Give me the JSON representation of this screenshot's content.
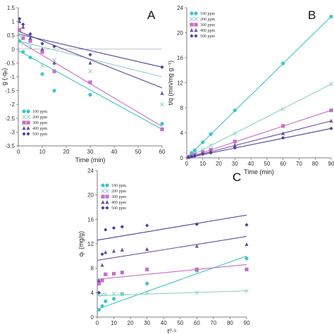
{
  "series_styles": [
    {
      "name": "100 ppm",
      "color": "#3fc4c9",
      "marker": "circle"
    },
    {
      "name": "200 ppm",
      "color": "#8fd1c8",
      "marker": "x"
    },
    {
      "name": "300 ppm",
      "color": "#c46fc6",
      "marker": "square"
    },
    {
      "name": "400 ppm",
      "color": "#6a4fa3",
      "marker": "triangle"
    },
    {
      "name": "500 ppm",
      "color": "#4b3f9e",
      "marker": "diamond"
    }
  ],
  "chart_data": [
    {
      "panel": "A",
      "type": "scatter",
      "xlabel": "Time (min)",
      "ylabel": "g (-qₑ)",
      "xlim": [
        0,
        60
      ],
      "ylim": [
        -3.5,
        1.5
      ],
      "xticks": [
        0,
        10,
        20,
        30,
        40,
        50,
        60
      ],
      "yticks": [
        1.5,
        1,
        0.5,
        0,
        -0.5,
        -1,
        -1.5,
        -2,
        -2.5,
        -3,
        -3.5
      ],
      "legend": [
        "100 ppm",
        "200 ppm",
        "300 ppm",
        "400 ppm",
        "500 ppm"
      ],
      "series": [
        {
          "name": "100 ppm",
          "points": [
            [
              0.5,
              0.3
            ],
            [
              2,
              -0.1
            ],
            [
              5,
              -0.3
            ],
            [
              10,
              -0.9
            ],
            [
              15,
              -1.5
            ],
            [
              30,
              -1.65
            ],
            [
              60,
              -2.7
            ]
          ],
          "fit": [
            [
              0,
              -0.05
            ],
            [
              60,
              -2.9
            ]
          ]
        },
        {
          "name": "200 ppm",
          "points": [
            [
              0.5,
              0.5
            ],
            [
              2,
              0.2
            ],
            [
              5,
              0.1
            ],
            [
              10,
              -0.6
            ],
            [
              15,
              -0.4
            ],
            [
              30,
              -0.8
            ],
            [
              60,
              -2.0
            ]
          ],
          "fit": [
            [
              0,
              0.3
            ],
            [
              60,
              -1.0
            ]
          ]
        },
        {
          "name": "300 ppm",
          "points": [
            [
              0.5,
              0.7
            ],
            [
              2,
              0.4
            ],
            [
              5,
              0.3
            ],
            [
              10,
              -0.1
            ],
            [
              15,
              -0.8
            ],
            [
              30,
              -1.2
            ],
            [
              60,
              -2.9
            ]
          ],
          "fit": [
            [
              0,
              0.3
            ],
            [
              60,
              -2.8
            ]
          ]
        },
        {
          "name": "400 ppm",
          "points": [
            [
              0.5,
              1.0
            ],
            [
              2,
              0.8
            ],
            [
              5,
              0.4
            ],
            [
              10,
              0.0
            ],
            [
              15,
              -0.5
            ],
            [
              30,
              -0.5
            ],
            [
              60,
              -1.6
            ]
          ],
          "fit": [
            [
              0,
              0.65
            ],
            [
              60,
              -1.4
            ]
          ]
        },
        {
          "name": "500 ppm",
          "points": [
            [
              0.5,
              1.1
            ],
            [
              2,
              0.9
            ],
            [
              5,
              0.55
            ],
            [
              10,
              0.2
            ],
            [
              15,
              0.1
            ],
            [
              30,
              -0.2
            ],
            [
              60,
              -0.65
            ]
          ],
          "fit": [
            [
              0,
              0.55
            ],
            [
              60,
              -0.65
            ]
          ]
        }
      ]
    },
    {
      "panel": "B",
      "type": "scatter",
      "xlabel": "Time (min)",
      "ylabel": "t/q (min/mg g⁻¹)",
      "xlim": [
        0,
        90
      ],
      "ylim": [
        0,
        24
      ],
      "xticks": [
        0,
        10,
        20,
        30,
        40,
        50,
        60,
        70,
        80,
        90
      ],
      "yticks": [
        0,
        4,
        8,
        12,
        16,
        20,
        24
      ],
      "legend": [
        "100 ppm",
        "200 ppm",
        "300 ppm",
        "400 ppm",
        "500 ppm"
      ],
      "series": [
        {
          "name": "100 ppm",
          "points": [
            [
              1,
              0.2
            ],
            [
              3,
              0.8
            ],
            [
              5,
              1.2
            ],
            [
              10,
              2.5
            ],
            [
              15,
              3.8
            ],
            [
              30,
              7.6
            ],
            [
              60,
              15.1
            ],
            [
              90,
              22.6
            ]
          ],
          "fit": [
            [
              0,
              0
            ],
            [
              90,
              22.6
            ]
          ]
        },
        {
          "name": "200 ppm",
          "points": [
            [
              1,
              0.2
            ],
            [
              3,
              0.4
            ],
            [
              5,
              0.7
            ],
            [
              10,
              1.3
            ],
            [
              15,
              2.0
            ],
            [
              30,
              3.9
            ],
            [
              60,
              7.8
            ],
            [
              90,
              11.8
            ]
          ],
          "fit": [
            [
              0,
              0
            ],
            [
              90,
              11.8
            ]
          ]
        },
        {
          "name": "300 ppm",
          "points": [
            [
              1,
              0.1
            ],
            [
              3,
              0.3
            ],
            [
              5,
              0.5
            ],
            [
              10,
              0.9
            ],
            [
              15,
              1.3
            ],
            [
              30,
              2.6
            ],
            [
              60,
              5.1
            ],
            [
              90,
              7.6
            ]
          ],
          "fit": [
            [
              0,
              0
            ],
            [
              90,
              7.6
            ]
          ]
        },
        {
          "name": "400 ppm",
          "points": [
            [
              1,
              0.1
            ],
            [
              3,
              0.2
            ],
            [
              5,
              0.4
            ],
            [
              10,
              0.7
            ],
            [
              15,
              1.0
            ],
            [
              30,
              2.0
            ],
            [
              60,
              3.9
            ],
            [
              90,
              5.9
            ]
          ],
          "fit": [
            [
              0,
              0
            ],
            [
              90,
              5.9
            ]
          ]
        },
        {
          "name": "500 ppm",
          "points": [
            [
              1,
              0.1
            ],
            [
              3,
              0.2
            ],
            [
              5,
              0.3
            ],
            [
              10,
              0.6
            ],
            [
              15,
              0.8
            ],
            [
              30,
              1.6
            ],
            [
              60,
              3.2
            ],
            [
              90,
              4.7
            ]
          ],
          "fit": [
            [
              0,
              0
            ],
            [
              90,
              4.7
            ]
          ]
        }
      ]
    },
    {
      "panel": "C",
      "type": "scatter",
      "xlabel": "t⁰·⁵",
      "ylabel": "qₜ (mg/g)",
      "xlim": [
        0,
        90
      ],
      "ylim": [
        0,
        24
      ],
      "xticks": [
        0,
        10,
        20,
        30,
        40,
        50,
        60,
        70,
        80,
        90
      ],
      "yticks": [
        0,
        4,
        8,
        12,
        16,
        20,
        24
      ],
      "legend": [
        "100 ppm",
        "200 ppm",
        "300 ppm",
        "400 ppm",
        "500 ppm"
      ],
      "series": [
        {
          "name": "100 ppm",
          "points": [
            [
              1,
              1.2
            ],
            [
              3,
              1.8
            ],
            [
              5,
              2.6
            ],
            [
              10,
              3.0
            ],
            [
              15,
              3.8
            ],
            [
              30,
              5.5
            ],
            [
              60,
              7.6
            ],
            [
              90,
              9.6
            ]
          ],
          "fit": [
            [
              0,
              1.3
            ],
            [
              90,
              10.0
            ]
          ]
        },
        {
          "name": "200 ppm",
          "points": [
            [
              1,
              3.6
            ],
            [
              3,
              3.7
            ],
            [
              5,
              3.7
            ],
            [
              10,
              3.8
            ],
            [
              15,
              3.8
            ],
            [
              30,
              4.0
            ],
            [
              60,
              4.0
            ],
            [
              90,
              4.3
            ]
          ],
          "fit": [
            [
              0,
              3.5
            ],
            [
              90,
              4.3
            ]
          ]
        },
        {
          "name": "300 ppm",
          "points": [
            [
              1,
              5.5
            ],
            [
              3,
              6.0
            ],
            [
              5,
              7.0
            ],
            [
              10,
              7.1
            ],
            [
              15,
              7.3
            ],
            [
              30,
              7.8
            ],
            [
              60,
              7.8
            ],
            [
              90,
              7.8
            ]
          ],
          "fit": [
            [
              0,
              6.2
            ],
            [
              90,
              8.6
            ]
          ]
        },
        {
          "name": "400 ppm",
          "points": [
            [
              1,
              6.0
            ],
            [
              3,
              8.5
            ],
            [
              5,
              10.6
            ],
            [
              10,
              10.8
            ],
            [
              15,
              11.0
            ],
            [
              30,
              11.1
            ],
            [
              60,
              11.6
            ],
            [
              90,
              11.9
            ]
          ],
          "fit": [
            [
              0,
              9.3
            ],
            [
              90,
              13.2
            ]
          ]
        },
        {
          "name": "500 ppm",
          "points": [
            [
              1,
              4.0
            ],
            [
              3,
              10.3
            ],
            [
              5,
              14.3
            ],
            [
              10,
              14.6
            ],
            [
              15,
              14.8
            ],
            [
              30,
              15.0
            ],
            [
              60,
              15.2
            ],
            [
              90,
              15.1
            ]
          ],
          "fit": [
            [
              0,
              12.6
            ],
            [
              90,
              16.7
            ]
          ]
        }
      ]
    }
  ],
  "panels_text": [
    {
      "label": "A"
    },
    {
      "label": "B"
    },
    {
      "label": "C"
    }
  ]
}
